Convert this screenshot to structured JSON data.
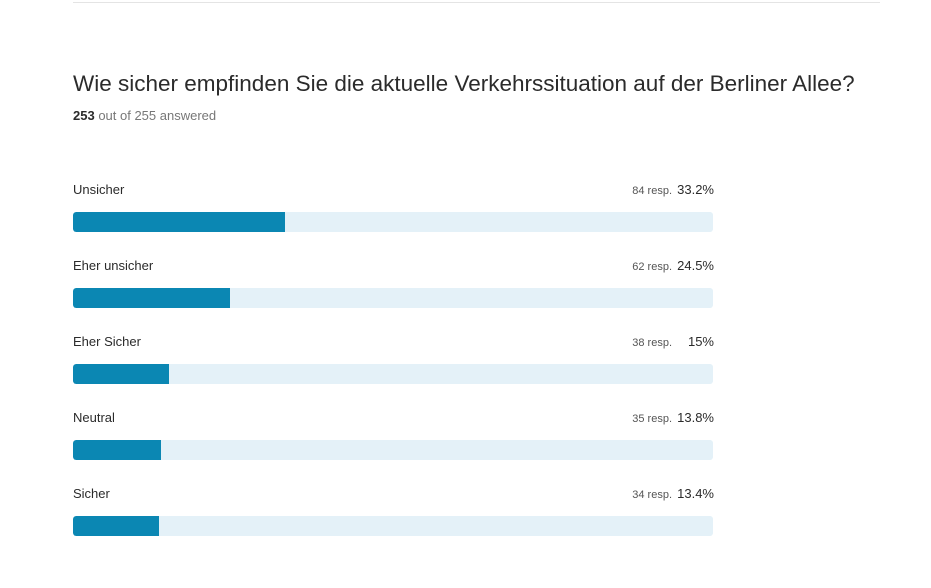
{
  "question": {
    "title": "Wie sicher empfinden Sie die aktuelle Verkehrssituation auf der Berliner Allee?",
    "answered": "253",
    "answered_suffix": " out of 255 answered"
  },
  "colors": {
    "bar_fill": "#0b87b3",
    "bar_track": "#e4f1f8"
  },
  "chart_data": {
    "type": "bar",
    "orientation": "horizontal",
    "categories": [
      "Unsicher",
      "Eher unsicher",
      "Eher Sicher",
      "Neutral",
      "Sicher"
    ],
    "values": [
      33.2,
      24.5,
      15,
      13.8,
      13.4
    ],
    "counts": [
      84,
      62,
      38,
      35,
      34
    ],
    "xlim": [
      0,
      100
    ],
    "rows": [
      {
        "label": "Unsicher",
        "count_text": "84 resp.",
        "percent_text": "33.2%",
        "value": 33.2
      },
      {
        "label": "Eher unsicher",
        "count_text": "62 resp.",
        "percent_text": "24.5%",
        "value": 24.5
      },
      {
        "label": "Eher Sicher",
        "count_text": "38 resp.",
        "percent_text": "15%",
        "value": 15
      },
      {
        "label": "Neutral",
        "count_text": "35 resp.",
        "percent_text": "13.8%",
        "value": 13.8
      },
      {
        "label": "Sicher",
        "count_text": "34 resp.",
        "percent_text": "13.4%",
        "value": 13.4
      }
    ]
  }
}
